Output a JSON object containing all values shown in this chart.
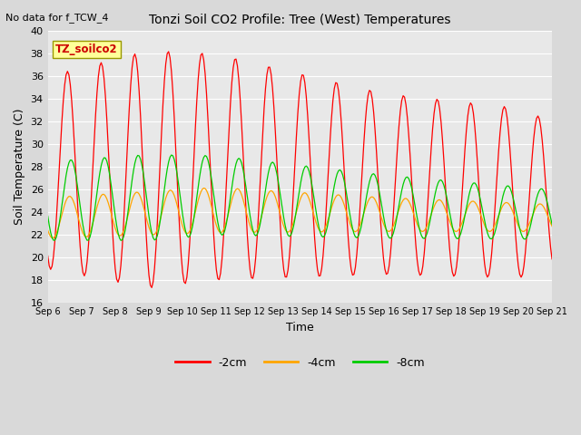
{
  "title": "Tonzi Soil CO2 Profile: Tree (West) Temperatures",
  "xlabel": "Time",
  "ylabel": "Soil Temperature (C)",
  "note": "No data for f_TCW_4",
  "legend_label": "TZ_soilco2",
  "ylim": [
    16,
    40
  ],
  "series_labels": [
    "-2cm",
    "-4cm",
    "-8cm"
  ],
  "series_colors": [
    "#ff0000",
    "#ffa500",
    "#00cc00"
  ],
  "fig_bg_color": "#d9d9d9",
  "plot_bg_color": "#e8e8e8",
  "xtick_labels": [
    "Sep 6",
    "Sep 7",
    "Sep 8",
    "Sep 9",
    "Sep 10",
    "Sep 11",
    "Sep 12",
    "Sep 13",
    "Sep 14",
    "Sep 15",
    "Sep 16",
    "Sep 17",
    "Sep 18",
    "Sep 19",
    "Sep 20",
    "Sep 21"
  ],
  "legend_box_color": "#ffff99",
  "legend_text_color": "#cc0000"
}
